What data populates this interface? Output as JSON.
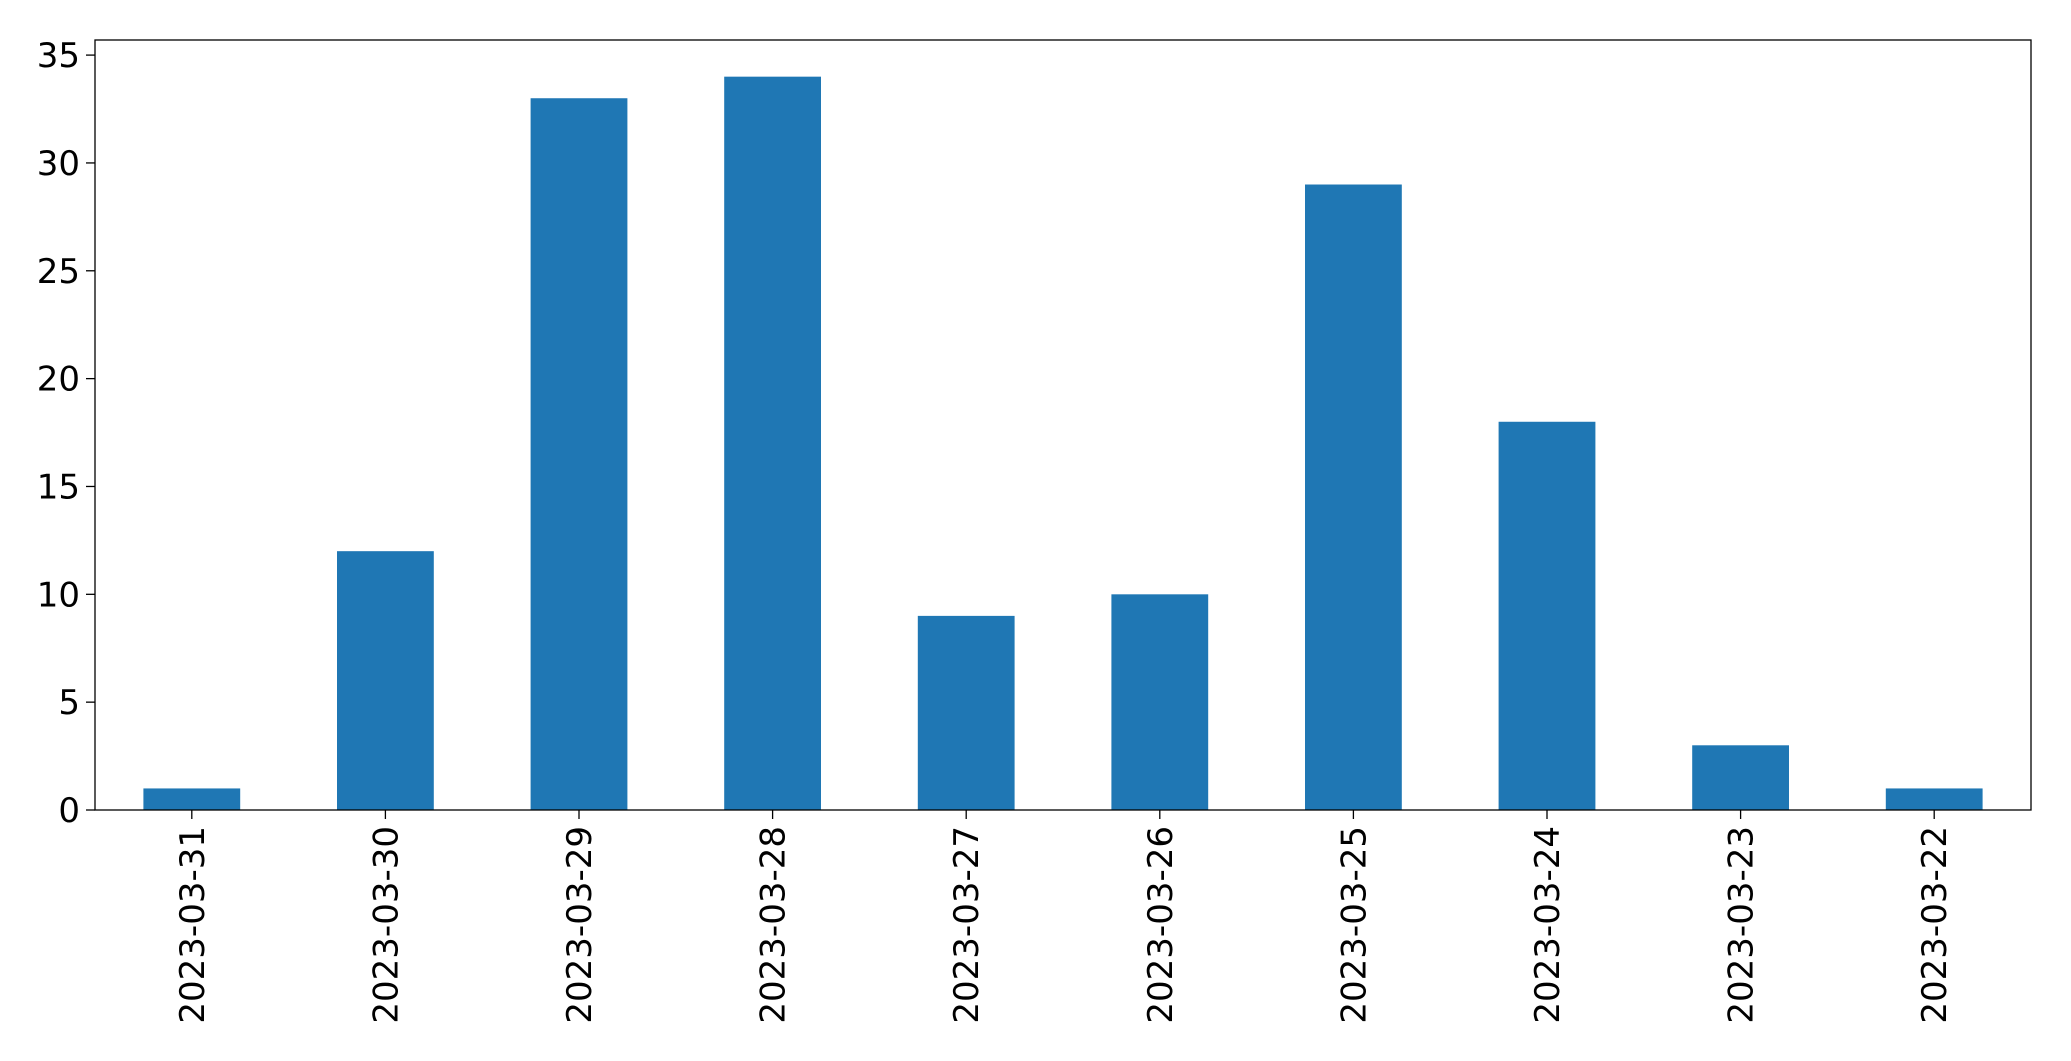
{
  "chart_data": {
    "type": "bar",
    "categories": [
      "2023-03-31",
      "2023-03-30",
      "2023-03-29",
      "2023-03-28",
      "2023-03-27",
      "2023-03-26",
      "2023-03-25",
      "2023-03-24",
      "2023-03-23",
      "2023-03-22"
    ],
    "values": [
      1,
      12,
      33,
      34,
      9,
      10,
      29,
      18,
      3,
      1
    ],
    "color": "#1f77b4",
    "ylim": [
      0,
      35.7
    ],
    "yticks": [
      0,
      5,
      10,
      15,
      20,
      25,
      30,
      35
    ],
    "grid": false
  }
}
